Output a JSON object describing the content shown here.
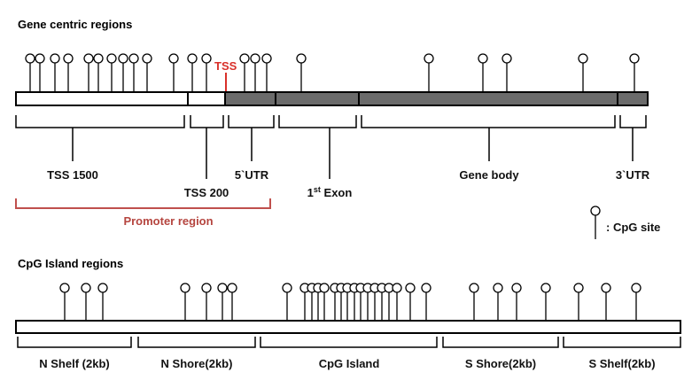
{
  "gene_section": {
    "title": "Gene centric regions",
    "tss_marker": "TSS",
    "regions": [
      {
        "key": "tss1500",
        "label": "TSS 1500"
      },
      {
        "key": "tss200",
        "label": "TSS 200"
      },
      {
        "key": "utr5",
        "label": "5`UTR"
      },
      {
        "key": "exon1",
        "label": "1",
        "sup": "st",
        "suffix": " Exon"
      },
      {
        "key": "genebody",
        "label": "Gene body"
      },
      {
        "key": "utr3",
        "label": "3`UTR"
      }
    ],
    "promoter_label": "Promoter region",
    "cpg_site_count": 25
  },
  "legend": {
    "label": ": CpG site"
  },
  "island_section": {
    "title": "CpG Island regions",
    "regions": [
      {
        "key": "nshelf",
        "label": "N Shelf (2kb)"
      },
      {
        "key": "nshore",
        "label": "N Shore(2kb)"
      },
      {
        "key": "island",
        "label": "CpG Island"
      },
      {
        "key": "sshore",
        "label": "S Shore(2kb)"
      },
      {
        "key": "sshelf",
        "label": "S Shelf(2kb)"
      }
    ],
    "cpg_site_count": 31
  },
  "colors": {
    "promoter_segment": "#ffffff",
    "gene_segment": "#6b6b6b",
    "outline": "#000000",
    "tss_marker": "#d9302a",
    "promoter_bracket": "#c0504d"
  }
}
